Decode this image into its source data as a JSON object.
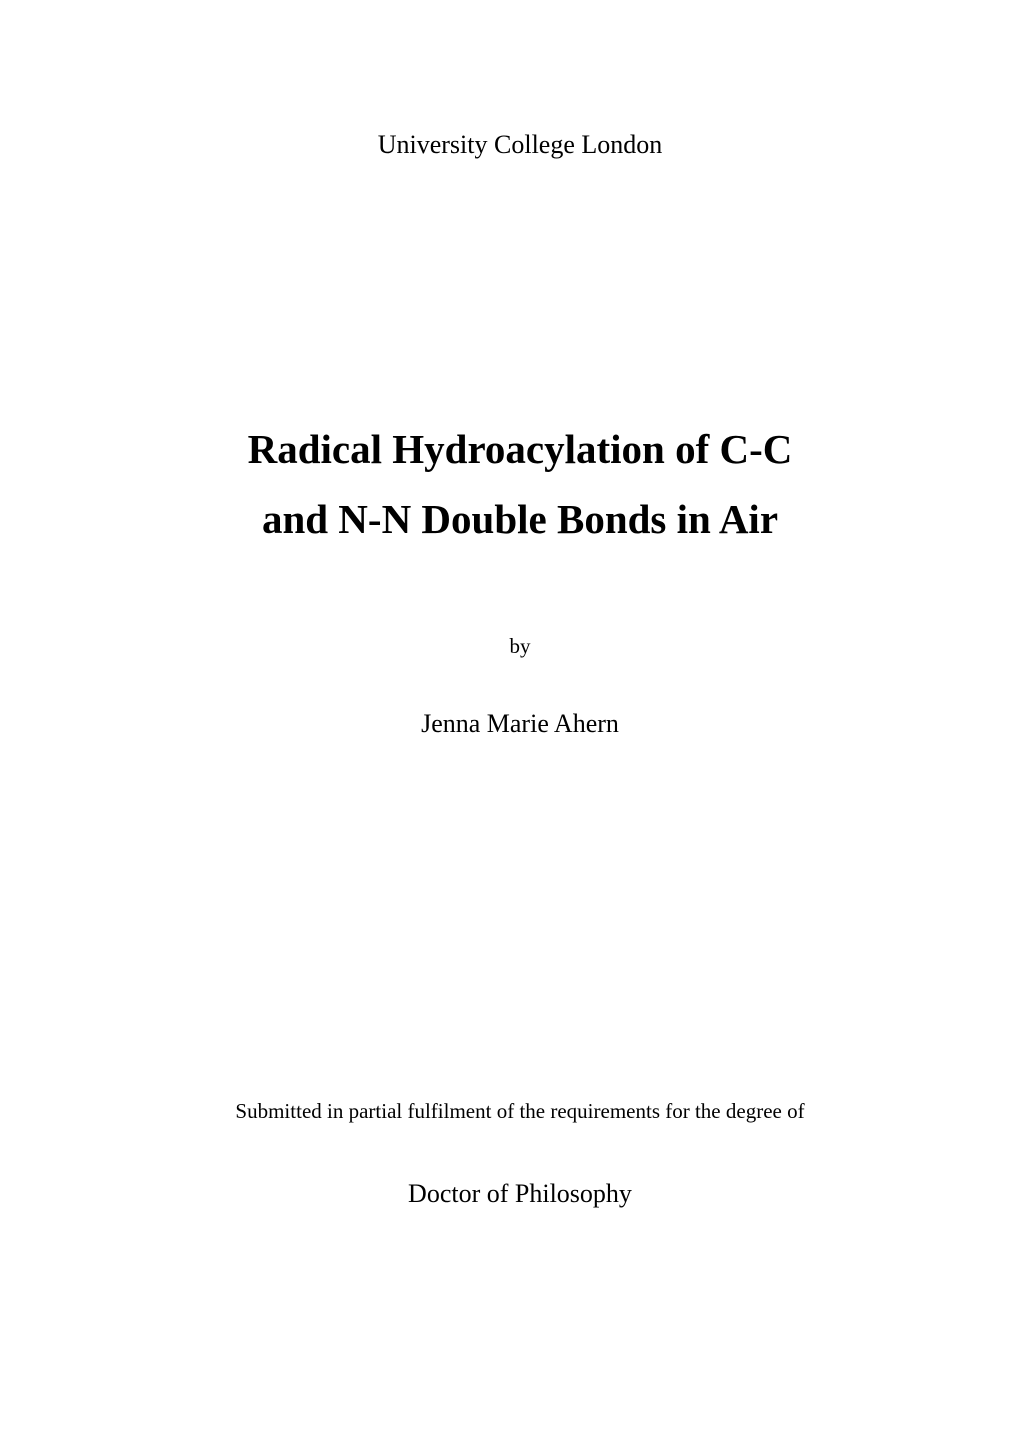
{
  "institution": "University College London",
  "title_line1": "Radical Hydroacylation of C-C",
  "title_line2": "and N-N Double Bonds in Air",
  "by": "by",
  "author": "Jenna Marie Ahern",
  "submission": "Submitted in partial fulfilment of the requirements for the degree of",
  "degree": "Doctor of Philosophy",
  "colors": {
    "background": "#ffffff",
    "text": "#000000"
  },
  "typography": {
    "font_family": "Times New Roman",
    "institution_fontsize": 26,
    "title_fontsize": 41,
    "title_fontweight": 700,
    "by_fontsize": 21,
    "author_fontsize": 26,
    "submission_fontsize": 21,
    "degree_fontsize": 26
  }
}
